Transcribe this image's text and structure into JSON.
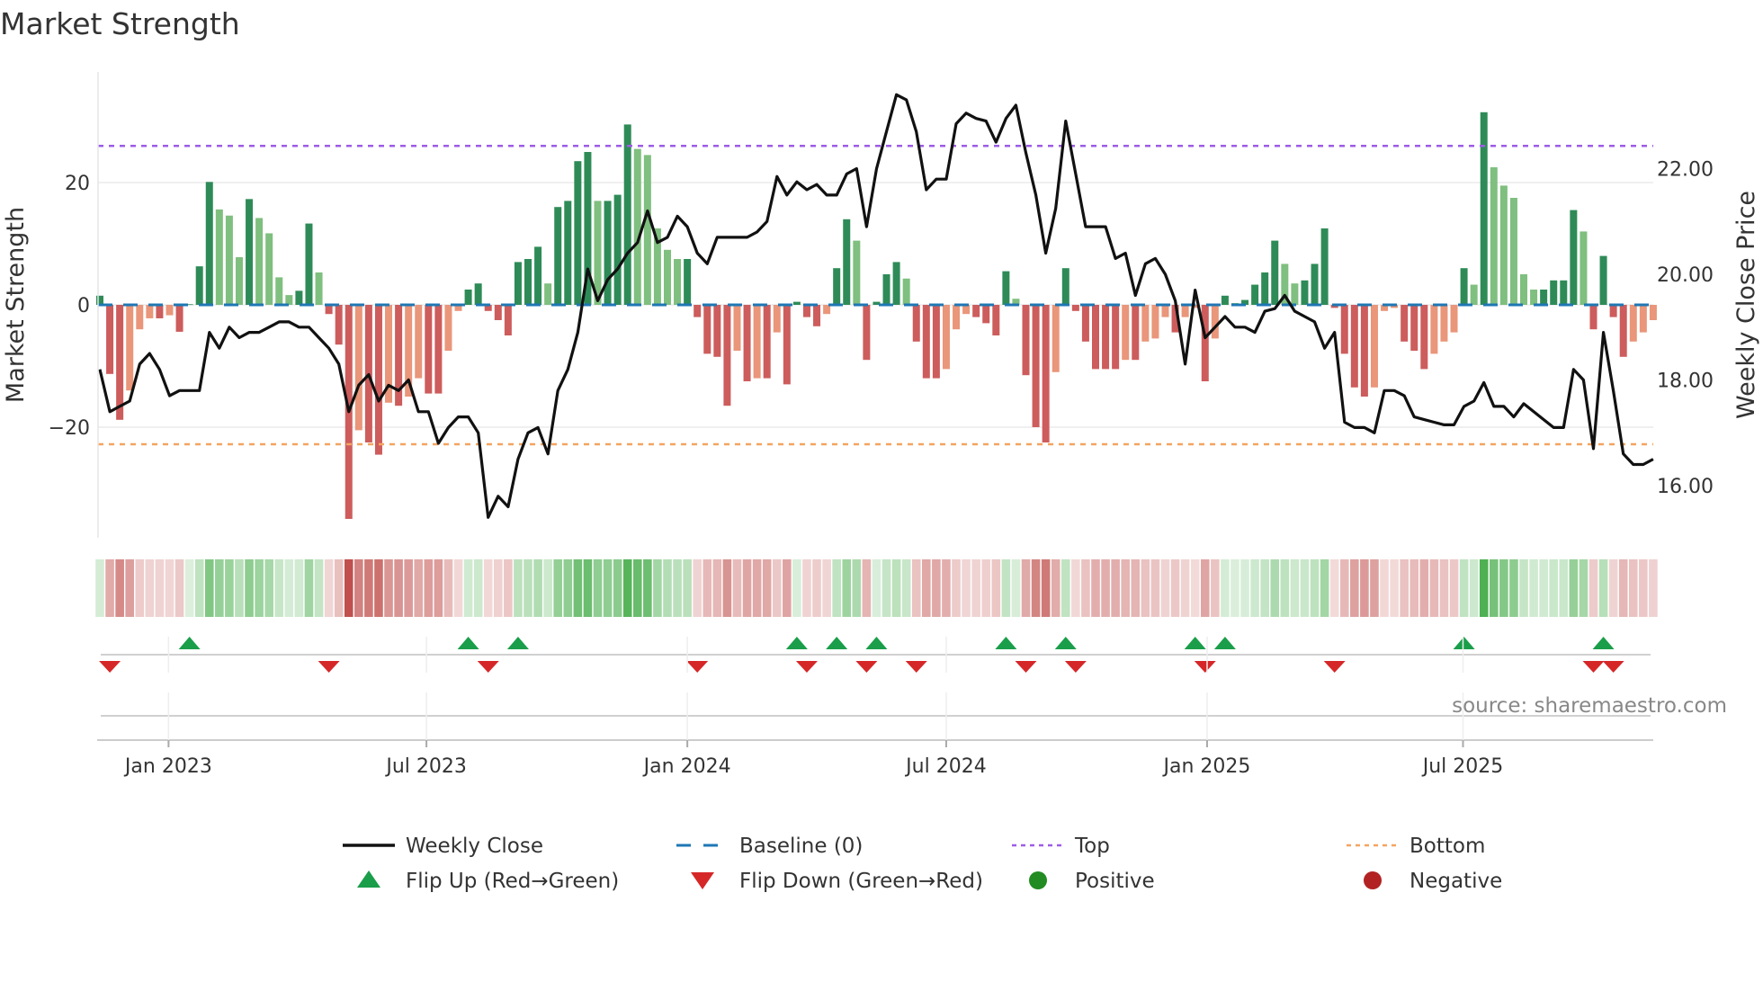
{
  "chart_data": {
    "type": "bar",
    "title": "Market Strength",
    "ylabel_left": "Market Strength",
    "ylabel_right": "Weekly Close Price",
    "left_ticks": [
      {
        "v": 20,
        "label": "20"
      },
      {
        "v": 0,
        "label": "0"
      },
      {
        "v": -20,
        "label": "−20"
      }
    ],
    "right_ticks": [
      {
        "v": 22,
        "label": "22.00"
      },
      {
        "v": 20,
        "label": "20.00"
      },
      {
        "v": 18,
        "label": "18.00"
      },
      {
        "v": 16,
        "label": "16.00"
      }
    ],
    "x_ticks": [
      {
        "week": 6.9,
        "label": "Jan 2023"
      },
      {
        "week": 32.8,
        "label": "Jul 2023"
      },
      {
        "week": 59.0,
        "label": "Jan 2024"
      },
      {
        "week": 85.0,
        "label": "Jul 2024"
      },
      {
        "week": 111.2,
        "label": "Jan 2025"
      },
      {
        "week": 136.9,
        "label": "Jul 2025"
      }
    ],
    "ylim_left": [
      -38,
      38
    ],
    "top_level": 26,
    "bottom_level": -22.8,
    "strength": [
      1.5,
      -11.3,
      -18.8,
      -14,
      -4,
      -2.2,
      -2.2,
      -1.7,
      -4.4,
      0.1,
      6.3,
      20.1,
      15.6,
      14.6,
      7.8,
      17.3,
      14.2,
      11.7,
      4.5,
      1.6,
      2.3,
      13.3,
      5.3,
      -1.5,
      -6.5,
      -35,
      -20.5,
      -22.5,
      -24.5,
      -16,
      -16.5,
      -15,
      -12,
      -14.5,
      -14.5,
      -7.5,
      -1,
      2.5,
      3.5,
      -1,
      -2.5,
      -5,
      7,
      7.5,
      9.5,
      3.5,
      16,
      17,
      23.5,
      25,
      17,
      17,
      18,
      29.5,
      25.5,
      24.5,
      12.5,
      9,
      7.5,
      7.5,
      -2,
      -8,
      -8.5,
      -16.5,
      -7.5,
      -12.5,
      -12,
      -12,
      -4.5,
      -13,
      0.5,
      -2,
      -3.5,
      -1.5,
      6,
      14,
      10.5,
      -9,
      0.5,
      5,
      7,
      4.3,
      -6,
      -12,
      -12,
      -10.5,
      -4,
      -1.5,
      -2,
      -3,
      -5,
      5.5,
      1,
      -11.5,
      -20,
      -22.5,
      -11,
      6,
      -1,
      -6,
      -10.5,
      -10.5,
      -10.5,
      -9,
      -9,
      -6,
      -5.5,
      -2,
      -4.5,
      -2,
      -0.5,
      -12.5,
      -5.5,
      1.5,
      0.3,
      0.8,
      3.3,
      5.3,
      10.5,
      6.7,
      3.5,
      4,
      6.7,
      12.5,
      -0.5,
      -8,
      -13.5,
      -15,
      -13.5,
      -1,
      -0.5,
      -6,
      -7.5,
      -10.5,
      -8,
      -6,
      -4.5,
      6,
      3.3,
      31.5,
      22.5,
      19.5,
      17.5,
      5,
      2.5,
      2.5,
      4,
      4,
      15.5,
      12,
      -4,
      8,
      -2,
      -8.5,
      -6,
      -4.5,
      -2.5
    ],
    "weekly_close": [
      18.2,
      17.4,
      17.5,
      17.6,
      18.3,
      18.5,
      18.2,
      17.7,
      17.8,
      17.8,
      17.8,
      18.9,
      18.6,
      19.0,
      18.8,
      18.9,
      18.9,
      19.0,
      19.1,
      19.1,
      19.0,
      19.0,
      18.8,
      18.6,
      18.3,
      17.4,
      17.9,
      18.1,
      17.6,
      17.9,
      17.8,
      18.0,
      17.4,
      17.4,
      16.8,
      17.1,
      17.3,
      17.3,
      17.0,
      15.4,
      15.8,
      15.6,
      16.5,
      17.0,
      17.1,
      16.6,
      17.8,
      18.2,
      18.9,
      20.1,
      19.5,
      19.9,
      20.1,
      20.4,
      20.6,
      21.2,
      20.6,
      20.7,
      21.1,
      20.9,
      20.4,
      20.2,
      20.7,
      20.7,
      20.7,
      20.7,
      20.8,
      21.0,
      21.85,
      21.5,
      21.75,
      21.6,
      21.7,
      21.5,
      21.5,
      21.9,
      22.0,
      20.9,
      22.0,
      22.7,
      23.4,
      23.3,
      22.7,
      21.6,
      21.8,
      21.8,
      22.85,
      23.05,
      22.95,
      22.9,
      22.5,
      22.95,
      23.2,
      22.3,
      21.5,
      20.4,
      21.25,
      22.9,
      21.9,
      20.9,
      20.9,
      20.9,
      20.3,
      20.4,
      19.6,
      20.2,
      20.3,
      20.0,
      19.5,
      18.3,
      19.7,
      18.8,
      19.0,
      19.2,
      19.0,
      19.0,
      18.9,
      19.3,
      19.35,
      19.6,
      19.3,
      19.2,
      19.1,
      18.6,
      18.9,
      17.2,
      17.1,
      17.1,
      17.0,
      17.8,
      17.8,
      17.7,
      17.3,
      17.25,
      17.2,
      17.15,
      17.15,
      17.5,
      17.6,
      17.95,
      17.5,
      17.5,
      17.3,
      17.55,
      17.4,
      17.25,
      17.1,
      17.1,
      18.2,
      18.0,
      16.7,
      18.9,
      17.8,
      16.6,
      16.4,
      16.4,
      16.5
    ],
    "flip_up_weeks": [
      9,
      37,
      42,
      70,
      74,
      78,
      91,
      97,
      110,
      113,
      137,
      151
    ],
    "flip_down_weeks": [
      1,
      23,
      39,
      60,
      71,
      77,
      82,
      93,
      98,
      111,
      124,
      150,
      152
    ],
    "legend": [
      {
        "label": "Weekly Close",
        "kind": "line"
      },
      {
        "label": "Baseline (0)",
        "kind": "dash"
      },
      {
        "label": "Top",
        "kind": "dot-top"
      },
      {
        "label": "Bottom",
        "kind": "dot-bottom"
      },
      {
        "label": "Flip Up (Red→Green)",
        "kind": "tri-up"
      },
      {
        "label": "Flip Down (Green→Red)",
        "kind": "tri-down"
      },
      {
        "label": "Positive",
        "kind": "circle-pos"
      },
      {
        "label": "Negative",
        "kind": "circle-neg"
      }
    ],
    "legend_placement": "bottom",
    "source": "source: sharemaestro.com"
  },
  "colors": {
    "pos_strong": "#2e8b57",
    "pos_weak": "#7fbf7f",
    "neg_strong": "#cd5c5c",
    "neg_weak": "#e9967a",
    "baseline": "#1f77b4",
    "top": "#9d5ce6",
    "bottom": "#f4a460",
    "flip_up": "#1a9e4a",
    "flip_down": "#d62728",
    "positive": "#228b22",
    "negative": "#b22222",
    "line": "#111111"
  }
}
